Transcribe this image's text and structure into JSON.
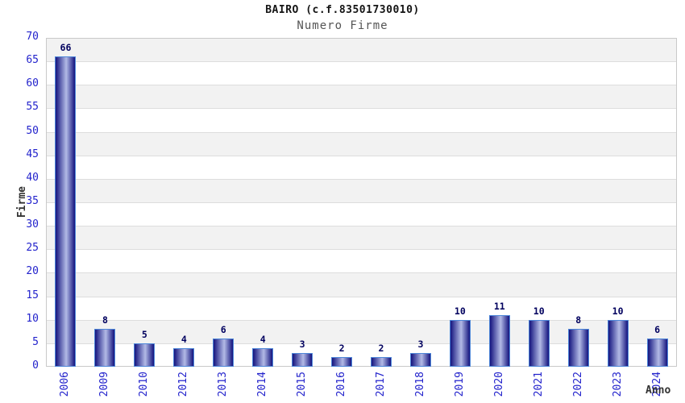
{
  "chart_data": {
    "type": "bar",
    "title": "BAIRO (c.f.83501730010)",
    "subtitle": "Numero Firme",
    "xlabel": "Anno",
    "ylabel": "Firme",
    "categories": [
      "2006",
      "2009",
      "2010",
      "2012",
      "2013",
      "2014",
      "2015",
      "2016",
      "2017",
      "2018",
      "2019",
      "2020",
      "2021",
      "2022",
      "2023",
      "2024"
    ],
    "values": [
      66,
      8,
      5,
      4,
      6,
      4,
      3,
      2,
      2,
      3,
      10,
      11,
      10,
      8,
      10,
      6
    ],
    "ylim": [
      0,
      70
    ],
    "ytick_step": 5,
    "grid": "horizontal-with-alternating-bands",
    "legend": "none",
    "colors": {
      "bar_dark": "#1a1a82",
      "bar_light": "#b2bae6",
      "bar_border": "#4d86d8",
      "tick_label": "#2323cc",
      "value_label": "#00005e",
      "band_gray": "#f2f2f2",
      "band_white": "#ffffff",
      "grid_line": "#dddddd",
      "frame": "#c9c9c9",
      "title_color": "#141414",
      "subtitle_color": "#555555",
      "axis_title_color": "#333333",
      "background": "#ffffff"
    }
  }
}
